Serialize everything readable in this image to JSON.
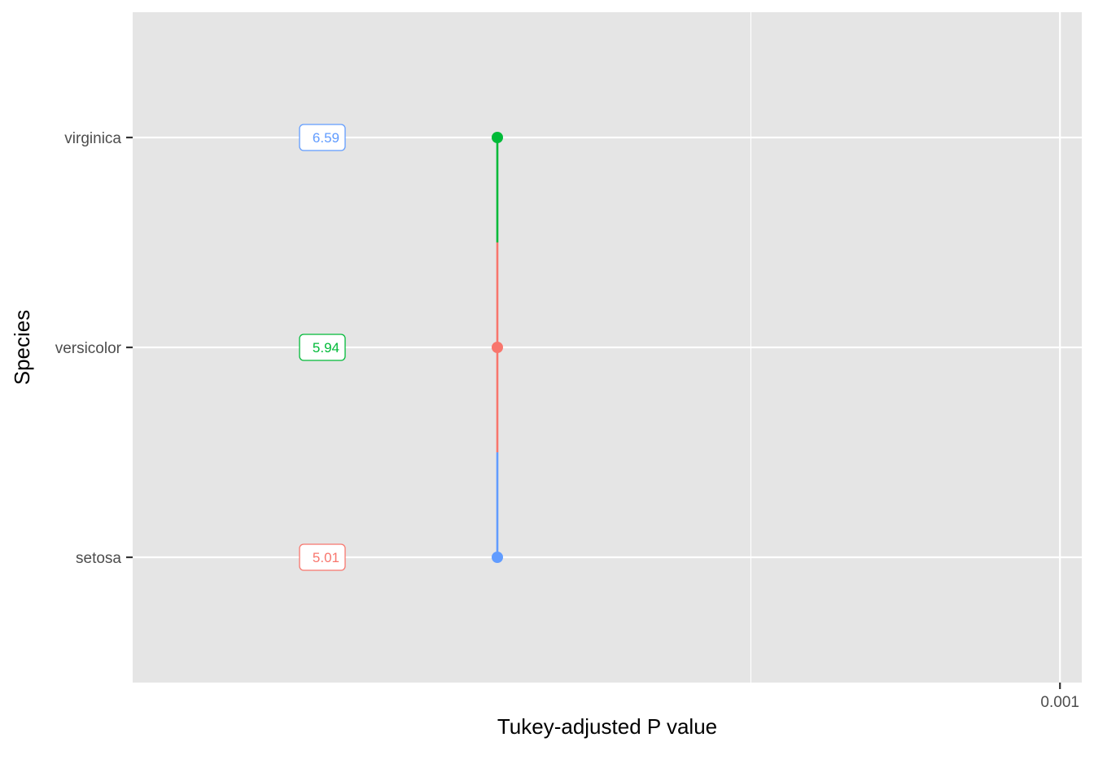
{
  "chart_data": {
    "type": "scatter",
    "xlabel": "Tukey-adjusted P value",
    "ylabel": "Species",
    "x_scale": "log",
    "x_ticks": [
      {
        "value": 0.001,
        "label": "0.001"
      }
    ],
    "x_minor_grid": [
      0.01
    ],
    "xlim": [
      1,
      0.00085
    ],
    "categories": [
      "setosa",
      "versicolor",
      "virginica"
    ],
    "points": [
      {
        "category": "setosa",
        "label": "5.01",
        "color": "#619CFF"
      },
      {
        "category": "versicolor",
        "label": "5.94",
        "color": "#F8766D"
      },
      {
        "category": "virginica",
        "label": "6.59",
        "color": "#00BA38"
      }
    ],
    "labels": [
      {
        "category": "setosa",
        "text": "5.01",
        "color": "#F8766D"
      },
      {
        "category": "versicolor",
        "text": "5.94",
        "color": "#00BA38"
      },
      {
        "category": "virginica",
        "text": "6.59",
        "color": "#619CFF"
      }
    ],
    "segments": [
      {
        "from": "setosa",
        "to": "versicolor",
        "color": "#619CFF"
      },
      {
        "from": "versicolor",
        "to": "virginica",
        "color": "#F8766D"
      },
      {
        "from": "virginica",
        "to": "versicolor",
        "color": "#00BA38"
      }
    ],
    "grid": true,
    "panel_background": "#E5E5E5",
    "legend": "none"
  }
}
